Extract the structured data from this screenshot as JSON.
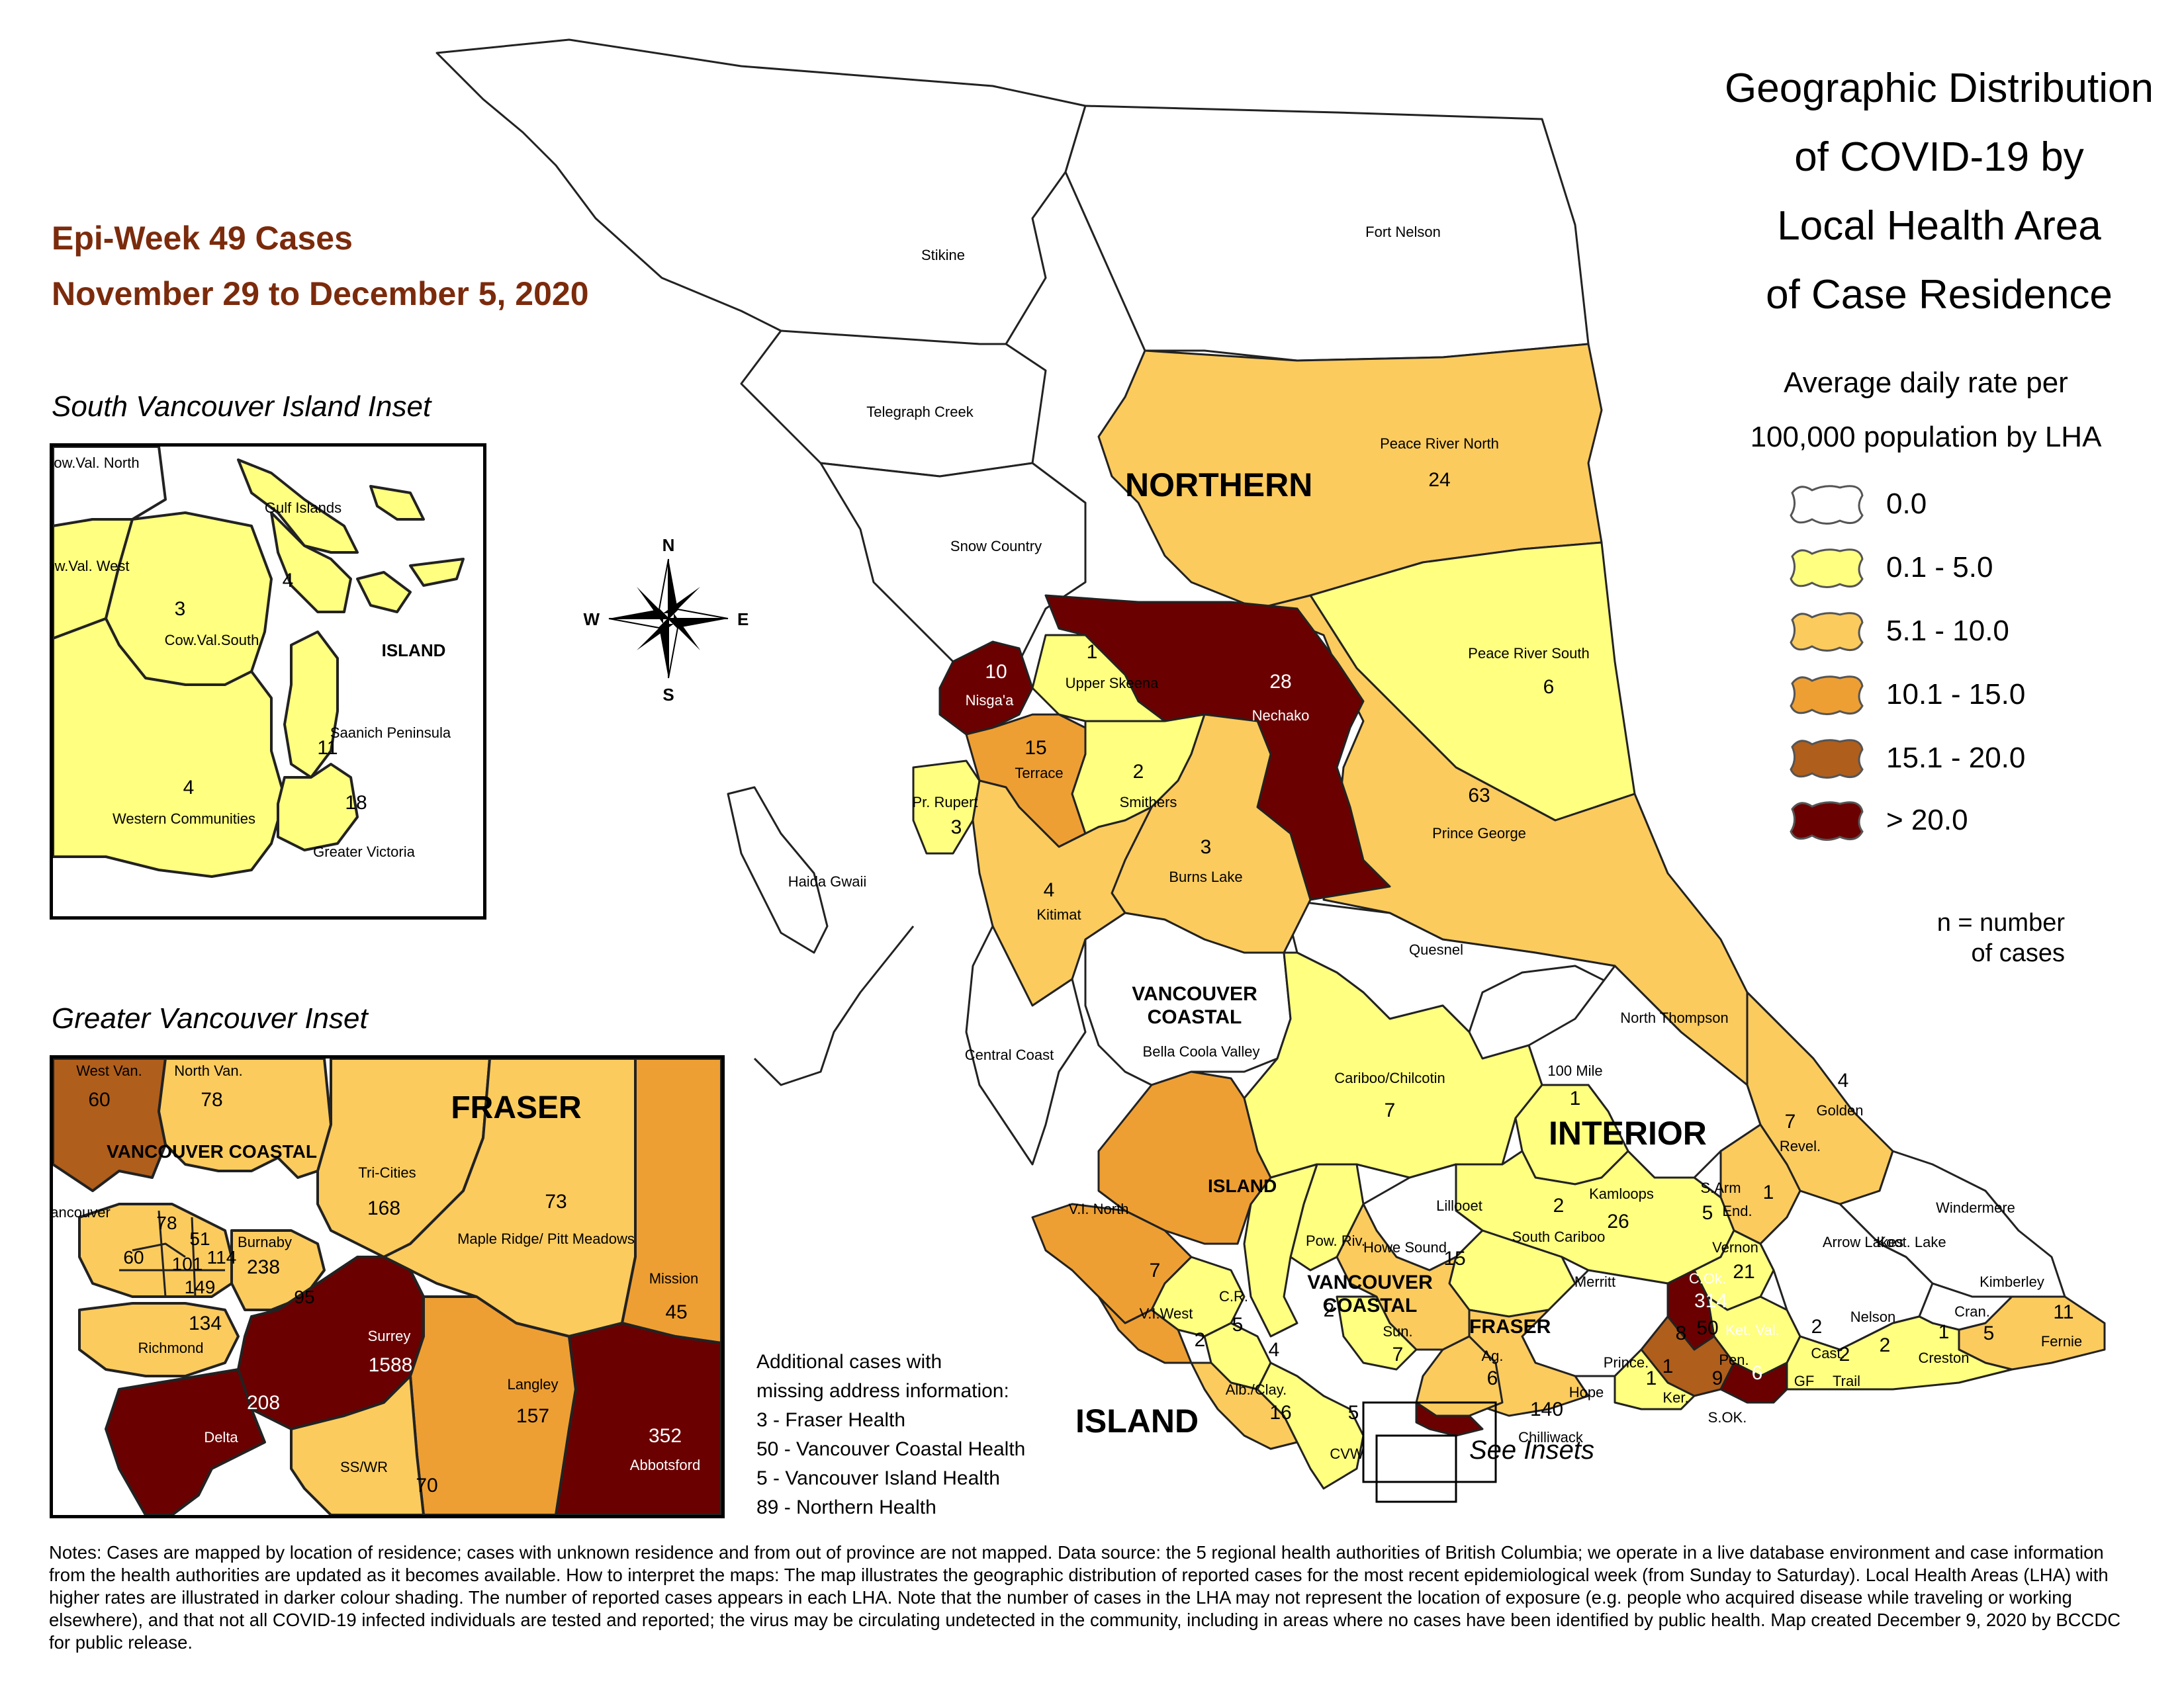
{
  "epi_week": {
    "line1": "Epi-Week 49 Cases",
    "line2": "November 29 to December 5, 2020"
  },
  "title": {
    "line1": "Geographic Distribution",
    "line2": "of COVID-19 by",
    "line3": "Local Health Area",
    "line4": "of Case Residence"
  },
  "legend": {
    "caption1": "Average daily rate per",
    "caption2": "100,000 population by LHA",
    "classes": [
      {
        "label": "0.0",
        "color": "#ffffff"
      },
      {
        "label": "0.1 - 5.0",
        "color": "#ffff80"
      },
      {
        "label": "5.1 - 10.0",
        "color": "#fbcb5e"
      },
      {
        "label": "10.1 - 15.0",
        "color": "#ee9f33"
      },
      {
        "label": "15.1 - 20.0",
        "color": "#b05e1b"
      },
      {
        "label": "> 20.0",
        "color": "#6b0000"
      }
    ],
    "n_note1": "n = number",
    "n_note2": "of cases"
  },
  "compass": {
    "n": "N",
    "s": "S",
    "e": "E",
    "w": "W"
  },
  "health_authorities": {
    "northern": "NORTHERN",
    "interior": "INTERIOR",
    "island": "ISLAND",
    "island_small": "ISLAND",
    "vancouver_coastal1": "VANCOUVER",
    "vancouver_coastal2": "COASTAL",
    "vch_small1": "VANCOUVER",
    "vch_small2": "COASTAL",
    "fraser_small": "FRASER"
  },
  "main_map": {
    "lhas": [
      {
        "name": "Stikine"
      },
      {
        "name": "Fort Nelson"
      },
      {
        "name": "Telegraph Creek"
      },
      {
        "name": "Peace River North",
        "cases": "24"
      },
      {
        "name": "Snow Country"
      },
      {
        "name": "Peace River South",
        "cases": "6"
      },
      {
        "name": "Nisga'a",
        "cases": "10"
      },
      {
        "name": "Upper Skeena",
        "cases": "1"
      },
      {
        "name": "Nechako",
        "cases": "28"
      },
      {
        "name": "Terrace",
        "cases": "15"
      },
      {
        "name": "Smithers",
        "cases": "2"
      },
      {
        "name": "Pr. Rupert",
        "cases": "3"
      },
      {
        "name": "Prince George",
        "cases": "63"
      },
      {
        "name": "Burns Lake",
        "cases": "3"
      },
      {
        "name": "Kitimat",
        "cases": "4"
      },
      {
        "name": "Haida Gwaii"
      },
      {
        "name": "Quesnel"
      },
      {
        "name": "Bella Coola Valley"
      },
      {
        "name": "Central Coast"
      },
      {
        "name": "North Thompson"
      },
      {
        "name": "Cariboo/Chilcotin",
        "cases": "7"
      },
      {
        "name": "100 Mile",
        "cases": "1"
      },
      {
        "name": "Golden",
        "cases": "4"
      },
      {
        "name": "Revel.",
        "cases": "7"
      },
      {
        "name": "Lillooet"
      },
      {
        "name": "Kamloops",
        "cases": "26"
      },
      {
        "name": "S.Arm",
        "cases": "1"
      },
      {
        "name": "End.",
        "cases": "5"
      },
      {
        "name": "Windermere"
      },
      {
        "name": "South Cariboo",
        "cases": "2"
      },
      {
        "name": "Vernon",
        "cases": "21"
      },
      {
        "name": "Arrow Lakes"
      },
      {
        "name": "Koot. Lake"
      },
      {
        "name": "Kimberley"
      },
      {
        "name": "V.I. North",
        "cases": "7"
      },
      {
        "name": "Pow. Riv.",
        "cases": "2"
      },
      {
        "name": "Howe Sound",
        "cases": "15"
      },
      {
        "name": "Merritt"
      },
      {
        "name": "C.Ok.",
        "cases": "314"
      },
      {
        "name": "C.R.",
        "cases": "5"
      },
      {
        "name": "V.I.West",
        "cases": "2"
      },
      {
        "name": "Sun.",
        "cases": "7"
      },
      {
        "name": "Ag.",
        "cases": "6"
      },
      {
        "name": "Pen.",
        "cases": "50"
      },
      {
        "name": "Ket. Val.",
        "cases": "6"
      },
      {
        "name": "Nelson",
        "cases": "2"
      },
      {
        "name": "Cran.",
        "cases": "5"
      },
      {
        "name": "Fernie",
        "cases": "11"
      },
      {
        "name": "Prince.",
        "cases": "8"
      },
      {
        "name": "Cast.",
        "cases": "2"
      },
      {
        "name": "Creston",
        "cases": "1"
      },
      {
        "name": "Hope",
        "cases": "1"
      },
      {
        "name": "Ker.",
        "cases": "1"
      },
      {
        "name": "S.OK.",
        "cases": "9"
      },
      {
        "name": "GF"
      },
      {
        "name": "Trail",
        "cases": "2"
      },
      {
        "name": "Alb./Clay.",
        "cases": "16"
      },
      {
        "name": "Chilliwack",
        "cases": "140"
      },
      {
        "name": "CVW"
      }
    ],
    "extra_counts": {
      "alb_top": "4",
      "cvw": "5",
      "near_arrow": "2"
    }
  },
  "south_island_inset": {
    "title": "South Vancouver Island Inset",
    "authority": "ISLAND",
    "lhas": [
      {
        "name": "Cow.Val. North"
      },
      {
        "name": "Gulf Islands",
        "cases": "4"
      },
      {
        "name": "Cow.Val. West"
      },
      {
        "name": "Cow.Val.South",
        "cases": "3"
      },
      {
        "name": "Saanich Peninsula",
        "cases": "11"
      },
      {
        "name": "Western Communities",
        "cases": "4"
      },
      {
        "name": "Greater Victoria",
        "cases": "18"
      }
    ]
  },
  "vancouver_inset": {
    "title": "Greater Vancouver Inset",
    "fraser": "FRASER",
    "vancouver_coastal": "VANCOUVER COASTAL",
    "lhas": [
      {
        "name": "West Van.",
        "cases": "60"
      },
      {
        "name": "North Van.",
        "cases": "78"
      },
      {
        "name": "Tri-Cities",
        "cases": "168"
      },
      {
        "name": "Maple Ridge/ Pitt Meadows",
        "cases": "73"
      },
      {
        "name": "Vancouver"
      },
      {
        "name": "Burnaby",
        "cases": "238"
      },
      {
        "name": "Mission",
        "cases": "45"
      },
      {
        "name": "Richmond",
        "cases": "134"
      },
      {
        "name": "Surrey",
        "cases": "1588"
      },
      {
        "name": "Langley",
        "cases": "157"
      },
      {
        "name": "Delta",
        "cases": "208"
      },
      {
        "name": "Abbotsford",
        "cases": "352"
      },
      {
        "name": "SS/WR",
        "cases": "70"
      }
    ],
    "vancouver_sub_counts": [
      "78",
      "51",
      "60",
      "101",
      "114",
      "149"
    ],
    "burnaby_extra": "95"
  },
  "missing_address": {
    "line1": "Additional cases with",
    "line2": "missing address information:",
    "items": [
      "3 - Fraser Health",
      "50 - Vancouver Coastal Health",
      "5 - Vancouver Island Health",
      "89 - Northern Health"
    ]
  },
  "see_insets": "See Insets",
  "notes": "Notes: Cases are mapped by location of residence; cases with unknown residence and from out of province are not mapped. Data source: the 5 regional health authorities of British Columbia; we operate in a live database environment and case information from the health authorities are updated as it becomes available. How to interpret the maps: The map illustrates the geographic distribution of reported cases for the most recent epidemiological week (from Sunday to Saturday). Local Health Areas (LHA) with higher rates are illustrated in darker colour shading. The number of reported cases appears in each LHA. Note that the number of cases in the LHA may not represent the location of exposure (e.g. people who acquired disease while traveling or working elsewhere), and that not all COVID-19 infected individuals are tested and reported; the virus may be circulating undetected in the community, including in areas where no cases have been identified by public health. Map created December 9, 2020 by BCCDC for public release."
}
